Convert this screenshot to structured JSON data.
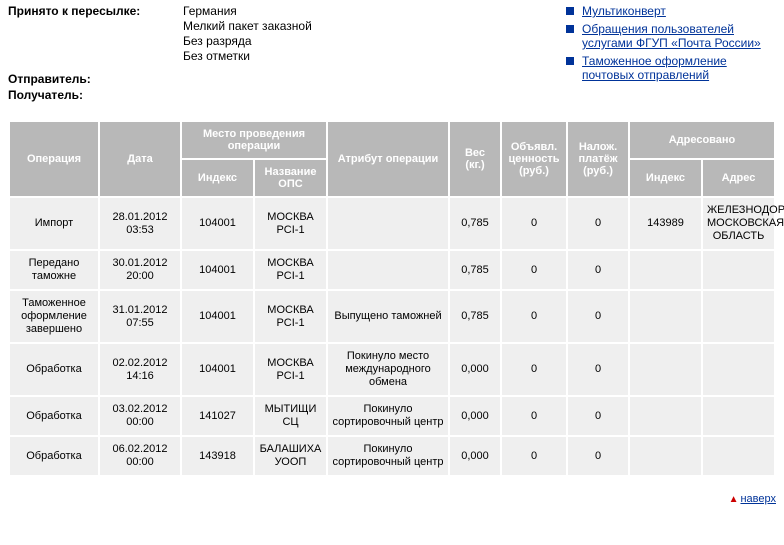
{
  "info": {
    "accepted_label": "Принято к пересылке:",
    "accepted_lines": [
      "Германия",
      "Мелкий пакет заказной",
      "Без разряда",
      "Без отметки"
    ],
    "sender_label": "Отправитель:",
    "recipient_label": "Получатель:"
  },
  "links": [
    "Мультиконверт",
    "Обращения пользователей услугами ФГУП «Почта России»",
    "Таможенное оформление почтовых отправлений"
  ],
  "table": {
    "headers": {
      "operation": "Операция",
      "date": "Дата",
      "location": "Место проведения операции",
      "index": "Индекс",
      "ops_name": "Название ОПС",
      "attribute": "Атрибут операции",
      "weight": "Вес (кг.)",
      "declared": "Объявл. ценность (руб.)",
      "cod": "Налож. платёж (руб.)",
      "addressed": "Адресовано",
      "addr_index": "Индекс",
      "address": "Адрес"
    },
    "rows": [
      {
        "op": "Импорт",
        "date": "28.01.2012 03:53",
        "idx": "104001",
        "ops": "МОСКВА PCI-1",
        "attr": "",
        "wt": "0,785",
        "val": "0",
        "pay": "0",
        "idx2": "143989",
        "addr": "ЖЕЛЕЗНОДОРОЖНЫЙ, МОСКОВСКАЯ ОБЛАСТЬ"
      },
      {
        "op": "Передано таможне",
        "date": "30.01.2012 20:00",
        "idx": "104001",
        "ops": "МОСКВА PCI-1",
        "attr": "",
        "wt": "0,785",
        "val": "0",
        "pay": "0",
        "idx2": "",
        "addr": ""
      },
      {
        "op": "Таможенное оформление завершено",
        "date": "31.01.2012 07:55",
        "idx": "104001",
        "ops": "МОСКВА PCI-1",
        "attr": "Выпущено таможней",
        "wt": "0,785",
        "val": "0",
        "pay": "0",
        "idx2": "",
        "addr": ""
      },
      {
        "op": "Обработка",
        "date": "02.02.2012 14:16",
        "idx": "104001",
        "ops": "МОСКВА PCI-1",
        "attr": "Покинуло место международного обмена",
        "wt": "0,000",
        "val": "0",
        "pay": "0",
        "idx2": "",
        "addr": ""
      },
      {
        "op": "Обработка",
        "date": "03.02.2012 00:00",
        "idx": "141027",
        "ops": "МЫТИЩИ СЦ",
        "attr": "Покинуло сортировочный центр",
        "wt": "0,000",
        "val": "0",
        "pay": "0",
        "idx2": "",
        "addr": ""
      },
      {
        "op": "Обработка",
        "date": "06.02.2012 00:00",
        "idx": "143918",
        "ops": "БАЛАШИХА УООП",
        "attr": "Покинуло сортировочный центр",
        "wt": "0,000",
        "val": "0",
        "pay": "0",
        "idx2": "",
        "addr": ""
      }
    ]
  },
  "bottom": {
    "up_label": "наверх"
  }
}
